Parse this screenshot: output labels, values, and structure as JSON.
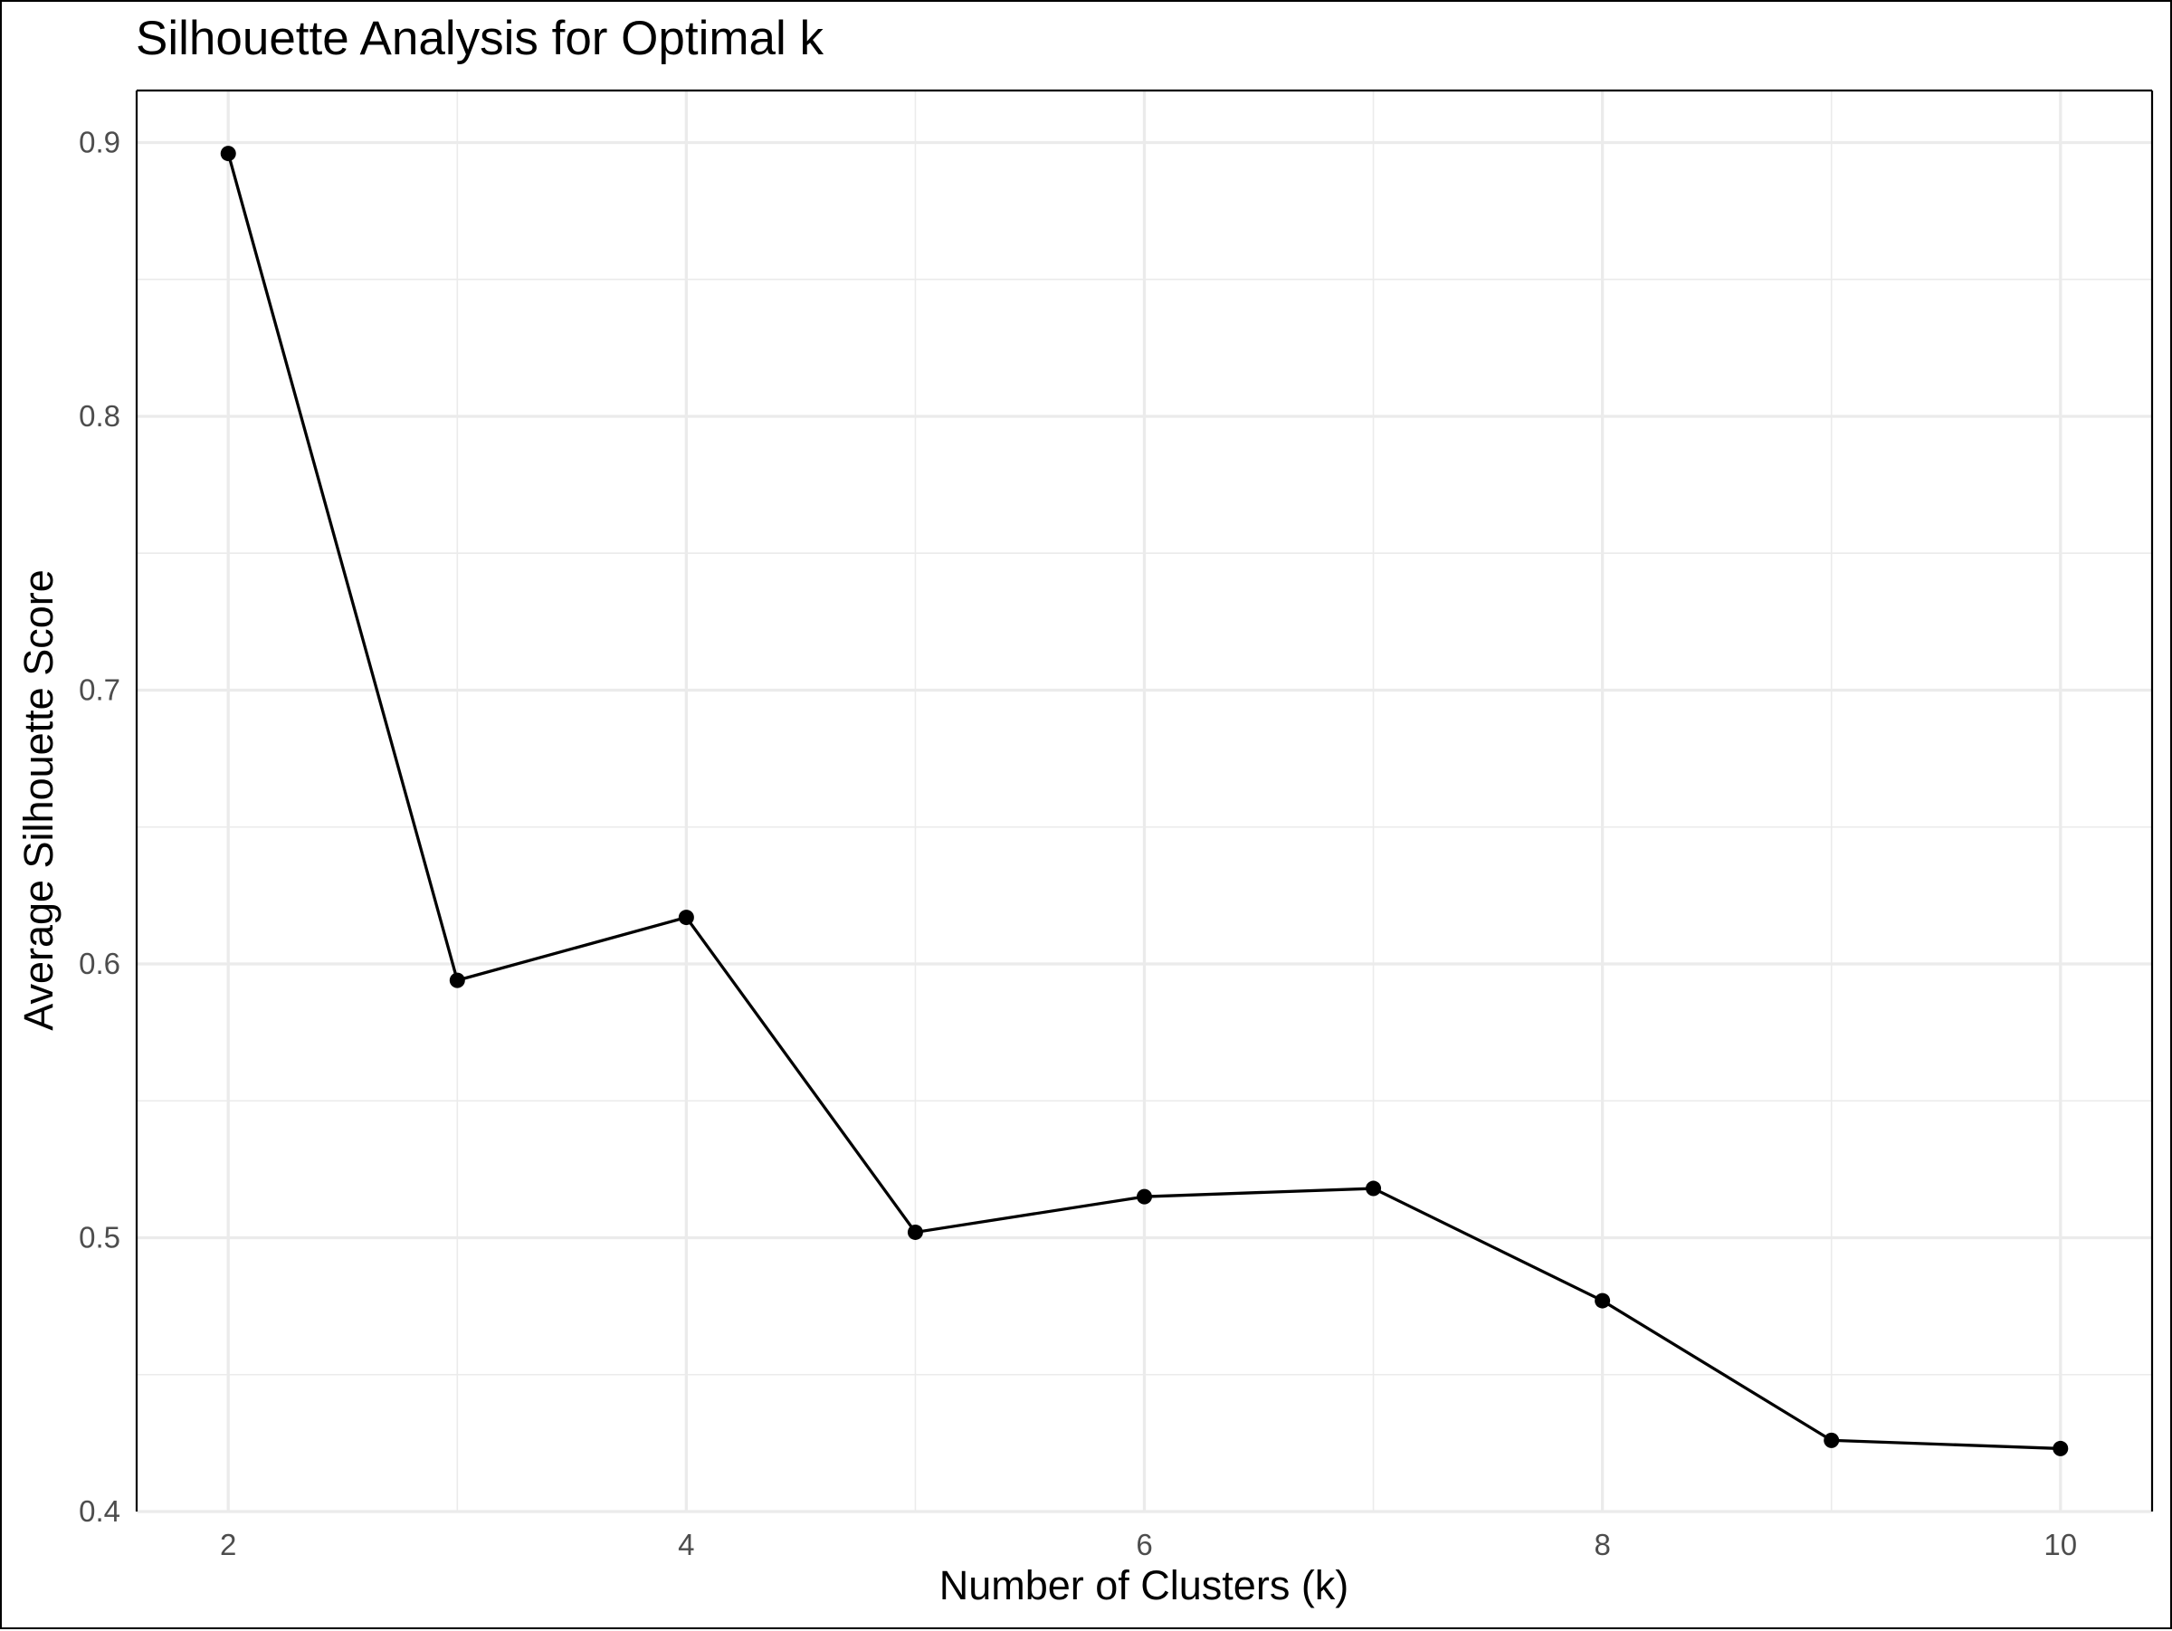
{
  "chart_data": {
    "type": "line",
    "title": "Silhouette Analysis for Optimal k",
    "xlabel": "Number of Clusters (k)",
    "ylabel": "Average Silhouette Score",
    "x": [
      2,
      3,
      4,
      5,
      6,
      7,
      8,
      9,
      10
    ],
    "series": [
      {
        "values": [
          0.896,
          0.594,
          0.617,
          0.502,
          0.515,
          0.518,
          0.477,
          0.426,
          0.423
        ]
      }
    ],
    "xlim": [
      1.6,
      10.4
    ],
    "ylim": [
      0.4,
      0.919
    ],
    "xticks": [
      2,
      4,
      6,
      8,
      10
    ],
    "xtick_labels": [
      "2",
      "4",
      "6",
      "8",
      "10"
    ],
    "yticks": [
      0.4,
      0.5,
      0.6,
      0.7,
      0.8,
      0.9
    ],
    "ytick_labels": [
      "0.4",
      "0.5",
      "0.6",
      "0.7",
      "0.8",
      "0.9"
    ],
    "grid": true,
    "legend": "none",
    "colors": {
      "line": "#000000",
      "points": "#000000",
      "grid": "#ebebeb",
      "tick_text": "#4d4d4d"
    }
  }
}
